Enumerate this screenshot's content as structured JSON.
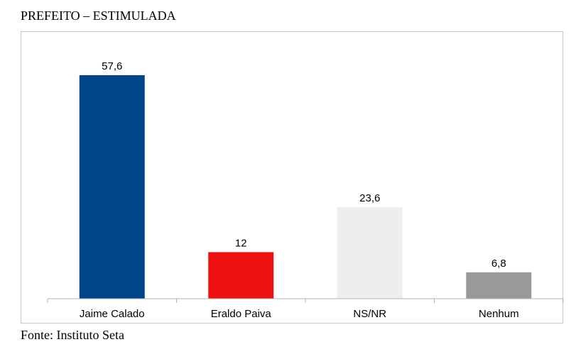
{
  "title": "PREFEITO – ESTIMULADA",
  "source": "Fonte: Instituto Seta",
  "chart_data": {
    "type": "bar",
    "categories": [
      "Jaime Calado",
      "Eraldo Paiva",
      "NS/NR",
      "Nenhum"
    ],
    "values": [
      57.6,
      12,
      23.6,
      6.8
    ],
    "value_labels": [
      "57,6",
      "12",
      "23,6",
      "6,8"
    ],
    "colors": [
      "#004586",
      "#ee1111",
      "#eeeeee",
      "#999999"
    ],
    "ylim": [
      0,
      66
    ],
    "grid": false,
    "legend": "none"
  }
}
